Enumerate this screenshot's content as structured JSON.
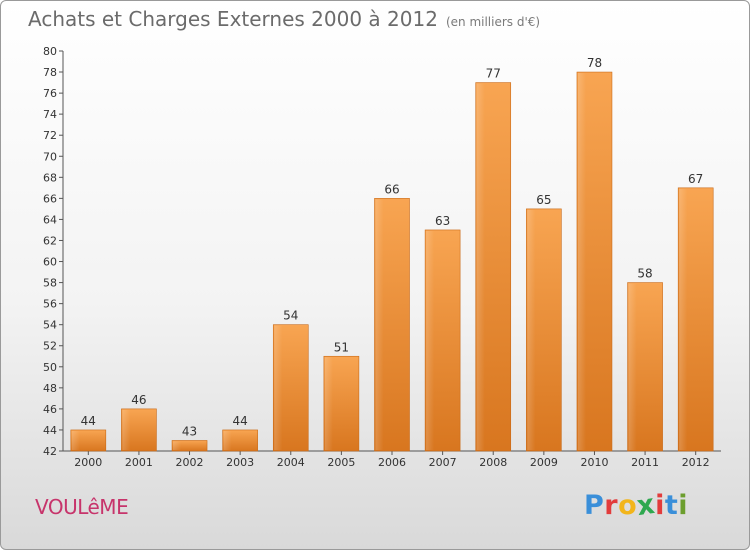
{
  "header": {
    "title": "Achats et Charges Externes 2000 à 2012",
    "subtitle": "(en milliers d'€)"
  },
  "commune": "VOULêME",
  "logo": {
    "text": "Proxiti",
    "letters": [
      "P",
      "r",
      "o",
      "x",
      "i",
      "t",
      "i"
    ],
    "colors": [
      "#3a8fd9",
      "#e23c3c",
      "#f2b51b",
      "#2ea84f",
      "#e23c3c",
      "#3a8fd9",
      "#6c9e2e"
    ]
  },
  "chart_data": {
    "type": "bar",
    "title": "Achats et Charges Externes 2000 à 2012",
    "subtitle": "(en milliers d'€)",
    "categories": [
      "2000",
      "2001",
      "2002",
      "2003",
      "2004",
      "2005",
      "2006",
      "2007",
      "2008",
      "2009",
      "2010",
      "2011",
      "2012"
    ],
    "values": [
      44,
      46,
      43,
      44,
      54,
      51,
      66,
      63,
      77,
      65,
      78,
      58,
      67
    ],
    "ylim": [
      42,
      80
    ],
    "yticks": [
      42,
      44,
      46,
      48,
      50,
      52,
      54,
      56,
      58,
      60,
      62,
      64,
      66,
      68,
      70,
      72,
      74,
      76,
      78,
      80
    ],
    "grid": false,
    "bar_color": "#f0913a"
  }
}
